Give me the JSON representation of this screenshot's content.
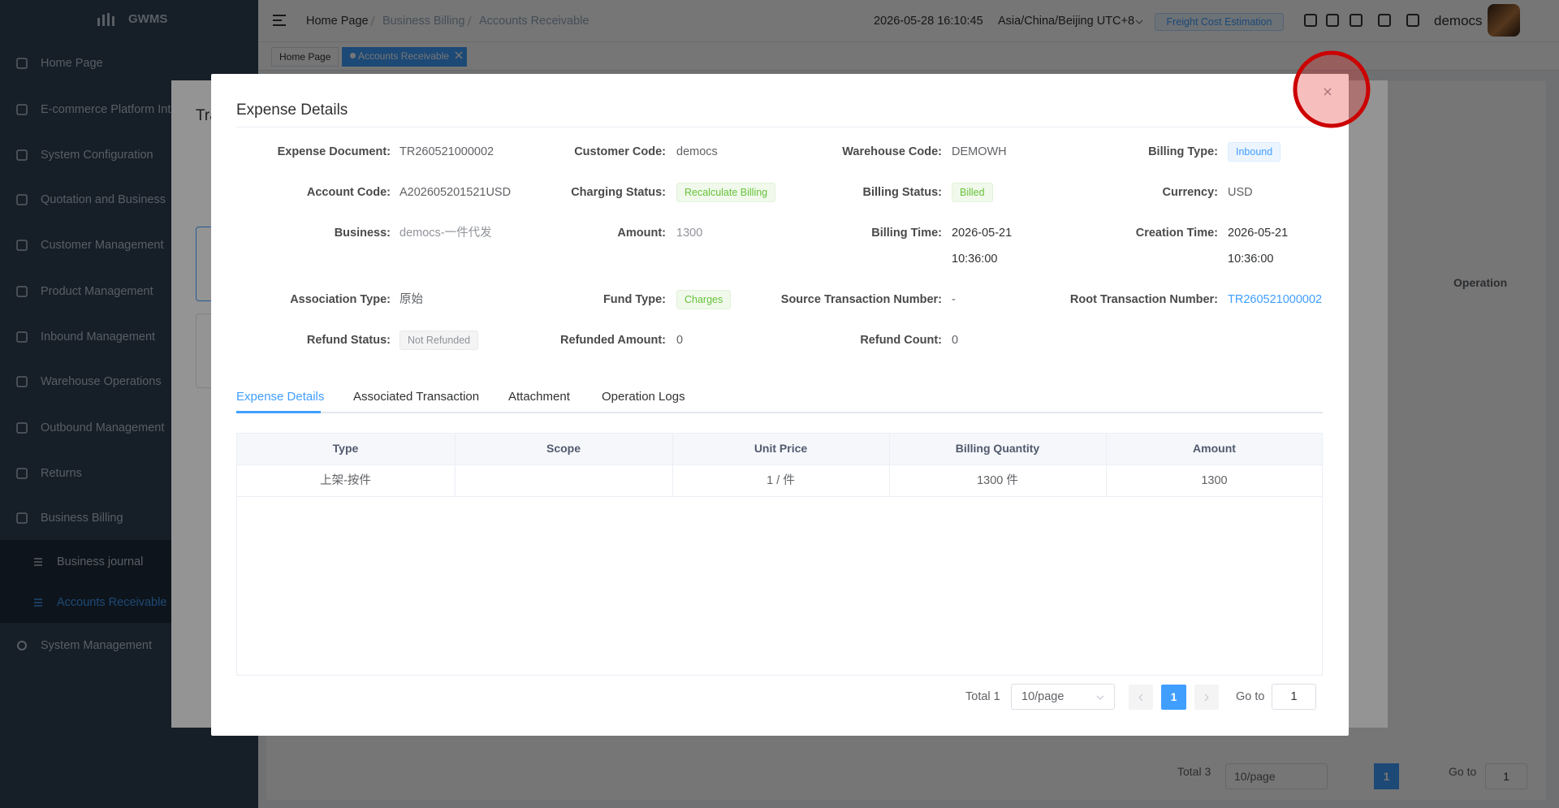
{
  "sidebar": {
    "brand": "GWMS",
    "menu": [
      "Home Page",
      "E-commerce Platform Int",
      "System Configuration",
      "Quotation and Business",
      "Customer Management",
      "Product Management",
      "Inbound Management",
      "Warehouse Operations",
      "Outbound Management",
      "Returns",
      "Business Billing"
    ],
    "submenu": [
      "Business journal",
      "Accounts Receivable"
    ],
    "footer_menu": "System Management"
  },
  "header": {
    "breadcrumb": [
      "Home Page",
      "Business Billing",
      "Accounts Receivable"
    ],
    "datetime": "2026-05-28 16:10:45",
    "timezone": "Asia/China/Beijing UTC+8",
    "button": "Freight Cost Estimation",
    "user": "democs"
  },
  "tabs_bar": [
    "Home Page",
    "Accounts Receivable"
  ],
  "background": {
    "dialog_title": "Tra",
    "table_header": "Operation",
    "pagination": {
      "total": "Total 3",
      "page_size": "10/page",
      "page": "1",
      "goto": "Go to",
      "goto_value": "1"
    }
  },
  "modal": {
    "title": "Expense Details",
    "fields": [
      [
        {
          "label": "Expense Document:",
          "value": "TR260521000002"
        },
        {
          "label": "Customer Code:",
          "value": "democs"
        },
        {
          "label": "Warehouse Code:",
          "value": "DEMOWH"
        },
        {
          "label": "Billing Type:",
          "value": "Inbound"
        }
      ],
      [
        {
          "label": "Account Code:",
          "value": "A202605201521USD"
        },
        {
          "label": "Charging Status:",
          "value": "Recalculate Billing"
        },
        {
          "label": "Billing Status:",
          "value": "Billed"
        },
        {
          "label": "Currency:",
          "value": "USD"
        }
      ],
      [
        {
          "label": "Business:",
          "value": "democs-一件代发"
        },
        {
          "label": "Amount:",
          "value": "1300"
        },
        {
          "label": "Billing Time:",
          "value": "2026-05-21 10:36:00"
        },
        {
          "label": "Creation Time:",
          "value": "2026-05-21 10:36:00"
        }
      ],
      [
        {
          "label": "Association Type:",
          "value": "原始"
        },
        {
          "label": "Fund Type:",
          "value": "Charges"
        },
        {
          "label": "Source Transaction Number:",
          "value": "-"
        },
        {
          "label": "Root Transaction Number:",
          "value": "TR260521000002"
        }
      ],
      [
        {
          "label": "Refund Status:",
          "value": "Not Refunded"
        },
        {
          "label": "Refunded Amount:",
          "value": "0"
        },
        {
          "label": "Refund Count:",
          "value": "0"
        }
      ]
    ],
    "tabs": [
      "Expense Details",
      "Associated Transaction",
      "Attachment",
      "Operation Logs"
    ],
    "table": {
      "headers": [
        "Type",
        "Scope",
        "Unit Price",
        "Billing Quantity",
        "Amount"
      ],
      "rows": [
        [
          "上架-按件",
          null,
          "1 / 件",
          "1300 件",
          "1300"
        ]
      ]
    },
    "pagination": {
      "total": "Total 1",
      "page_size": "10/page",
      "page": "1",
      "goto": "Go to",
      "goto_value": "1"
    }
  }
}
